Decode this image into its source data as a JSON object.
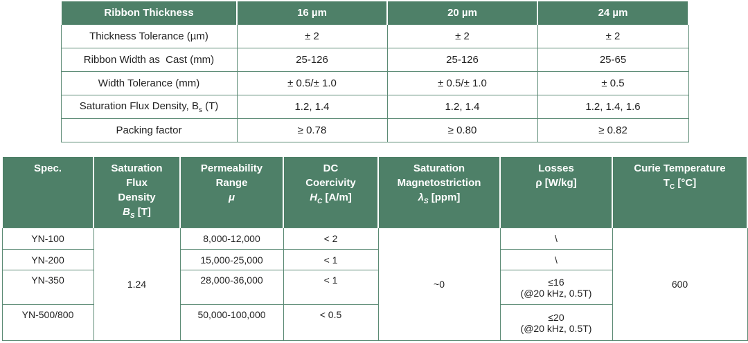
{
  "table1": {
    "headers": [
      "Ribbon Thickness",
      "16 µm",
      "20 µm",
      "24 µm"
    ],
    "rows": [
      {
        "label": "Thickness Tolerance (µm)",
        "values": [
          "± 2",
          "± 2",
          "± 2"
        ]
      },
      {
        "label": "Ribbon Width as  Cast (mm)",
        "values": [
          "25-126",
          "25-126",
          "25-65"
        ]
      },
      {
        "label": "Width Tolerance (mm)",
        "values": [
          "± 0.5/± 1.0",
          "± 0.5/± 1.0",
          "± 0.5"
        ]
      },
      {
        "label_main": "Saturation Flux Density, B",
        "label_sub": "s",
        "label_unit": " (T)",
        "values": [
          "1.2, 1.4",
          "1.2, 1.4",
          "1.2, 1.4, 1.6"
        ]
      },
      {
        "label": "Packing factor",
        "values": [
          "≥ 0.78",
          "≥ 0.80",
          "≥ 0.82"
        ]
      }
    ]
  },
  "table2": {
    "headers": {
      "spec": "Spec.",
      "sat_l1": "Saturation",
      "sat_l2": "Flux",
      "sat_l3": "Density",
      "sat_sym": "B",
      "sat_sub": "S",
      "sat_unit": " [T]",
      "perm_l1": "Permeability",
      "perm_l2": "Range",
      "perm_sym": "μ",
      "dc_l1": "DC",
      "dc_l2": "Coercivity",
      "dc_sym": "H",
      "dc_sub": "C",
      "dc_unit": " [A/m]",
      "mag_l1": "Saturation",
      "mag_l2": "Magnetostriction",
      "mag_sym": "λ",
      "mag_sub": "S",
      "mag_unit": " [ppm]",
      "loss_l1": "Losses",
      "loss_l2": "ρ [W/kg]",
      "curie_l1": "Curie Temperature",
      "curie_sym": "T",
      "curie_sub": "C",
      "curie_unit": " [°C]"
    },
    "specs": [
      "YN-100",
      "YN-200",
      "YN-350",
      "YN-500/800"
    ],
    "saturation": "1.24",
    "permeability": [
      "8,000-12,000",
      "15,000-25,000",
      "28,000-36,000",
      "50,000-100,000"
    ],
    "coercivity": [
      "< 2",
      "< 1",
      "< 1",
      "< 0.5"
    ],
    "magnetostriction": "~0",
    "losses": [
      {
        "l1": "\\",
        "l2": ""
      },
      {
        "l1": "\\",
        "l2": ""
      },
      {
        "l1": "≤16",
        "l2": "(@20 kHz, 0.5T)"
      },
      {
        "l1": "≤20",
        "l2": "(@20 kHz, 0.5T)"
      }
    ],
    "curie": "600"
  }
}
